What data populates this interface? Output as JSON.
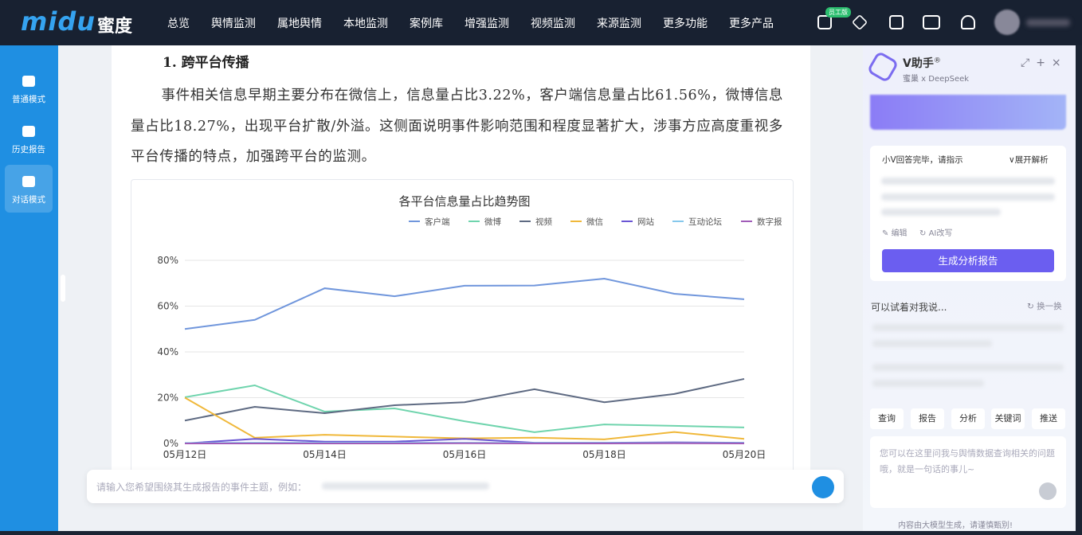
{
  "nav": {
    "logo": "midu",
    "brand": "蜜度",
    "items": [
      "总览",
      "舆情监测",
      "属地舆情",
      "本地监测",
      "案例库",
      "增强监测",
      "视频监测",
      "来源监测",
      "更多功能",
      "更多产品"
    ],
    "badge": "员工版"
  },
  "sidebar": {
    "items": [
      "普通模式",
      "历史报告",
      "对话模式"
    ]
  },
  "document": {
    "heading": "1. 跨平台传播",
    "paragraph": "事件相关信息早期主要分布在微信上，信息量占比3.22%，客户端信息量占比61.56%，微博信息量占比18.27%，出现平台扩散/外溢。这侧面说明事件影响范围和程度显著扩大，涉事方应高度重视多平台传播的特点，加强跨平台的监测。"
  },
  "chart_data": {
    "type": "line",
    "title": "各平台信息量占比趋势图",
    "categories": [
      "05月12日",
      null,
      "05月14日",
      null,
      "05月16日",
      null,
      "05月18日",
      null,
      "05月20日"
    ],
    "series": [
      {
        "name": "客户端",
        "color": "#7096dc",
        "values": [
          50,
          54,
          67.8,
          64.3,
          68.9,
          69,
          72,
          65.4,
          63
        ]
      },
      {
        "name": "微博",
        "color": "#6fd4ad",
        "values": [
          20.2,
          25.4,
          13.9,
          15.3,
          9.7,
          4.9,
          8.3,
          7.7,
          7
        ]
      },
      {
        "name": "视频",
        "color": "#5e6a82",
        "values": [
          10,
          16,
          13.2,
          16.7,
          18,
          23.7,
          18,
          21.6,
          28.2
        ]
      },
      {
        "name": "微信",
        "color": "#f0b83a",
        "values": [
          20,
          2.5,
          3.8,
          3,
          2.2,
          2.5,
          1.8,
          5,
          2
        ]
      },
      {
        "name": "网站",
        "color": "#6a55d4",
        "values": [
          0,
          2,
          0.8,
          0.8,
          2,
          0.3,
          0.3,
          0.5,
          0.3
        ]
      },
      {
        "name": "互动论坛",
        "color": "#86c8ec",
        "values": [
          0.2,
          0.3,
          0.3,
          0.3,
          0.3,
          0.2,
          0.2,
          0.2,
          0.2
        ]
      },
      {
        "name": "数字报",
        "color": "#a05cb8",
        "values": [
          0,
          0,
          0,
          0,
          0.1,
          0,
          0,
          0.1,
          0
        ]
      }
    ],
    "ylim": [
      0,
      80
    ],
    "yticks": [
      {
        "value": 0,
        "label": "0%"
      },
      {
        "value": 20,
        "label": "20%"
      },
      {
        "value": 40,
        "label": "40%"
      },
      {
        "value": 60,
        "label": "60%"
      },
      {
        "value": 80,
        "label": "80%"
      }
    ],
    "grid": true
  },
  "input": {
    "placeholder": "请输入您希望围绕其生成报告的事件主题，例如："
  },
  "assistant": {
    "title": "V助手",
    "mark": "®",
    "subtitle": "蜜巢 x DeepSeek",
    "status": "小V回答完毕，请指示",
    "expand": "展开解析",
    "edit": "编辑",
    "rewrite": "AI改写",
    "generate": "生成分析报告",
    "suggest": "可以试着对我说...",
    "refresh": "换一换",
    "quick": [
      "查询",
      "报告",
      "分析",
      "关键词",
      "推送"
    ],
    "placeholder": "您可以在这里问我与舆情数据查询相关的问题哦，就是一句话的事儿~",
    "footer": "内容由大模型生成，请谨慎甄别!"
  }
}
